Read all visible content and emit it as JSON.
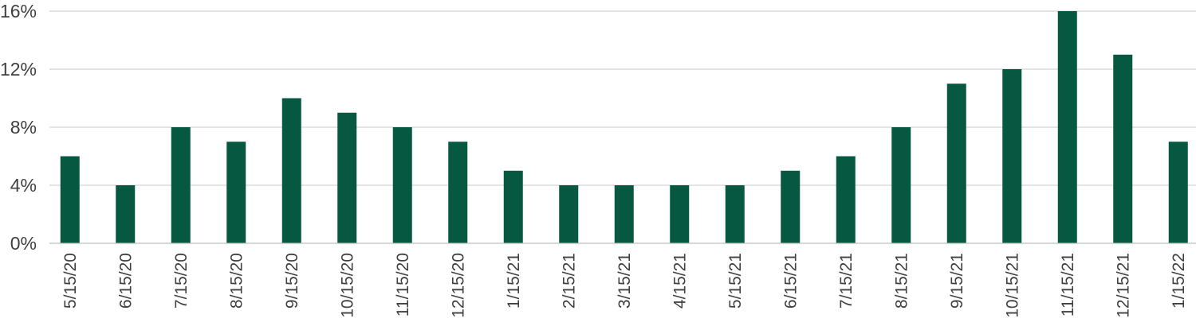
{
  "chart_data": {
    "type": "bar",
    "title": "",
    "xlabel": "",
    "ylabel": "",
    "categories": [
      "5/15/20",
      "6/15/20",
      "7/15/20",
      "8/15/20",
      "9/15/20",
      "10/15/20",
      "11/15/20",
      "12/15/20",
      "1/15/21",
      "2/15/21",
      "3/15/21",
      "4/15/21",
      "5/15/21",
      "6/15/21",
      "7/15/21",
      "8/15/21",
      "9/15/21",
      "10/15/21",
      "11/15/21",
      "12/15/21",
      "1/15/22"
    ],
    "values": [
      6,
      4,
      8,
      7,
      10,
      9,
      8,
      7,
      5,
      4,
      4,
      4,
      4,
      5,
      6,
      8,
      11,
      12,
      16,
      13,
      7
    ],
    "ylim": [
      0,
      16
    ],
    "yticks": [
      0,
      4,
      8,
      12,
      16
    ],
    "ytick_labels": [
      "0%",
      "4%",
      "8%",
      "12%",
      "16%"
    ],
    "grid": true,
    "legend": "none",
    "colors": {
      "bar": "#075841",
      "grid": "#c8c8c8",
      "text": "#404040"
    }
  }
}
